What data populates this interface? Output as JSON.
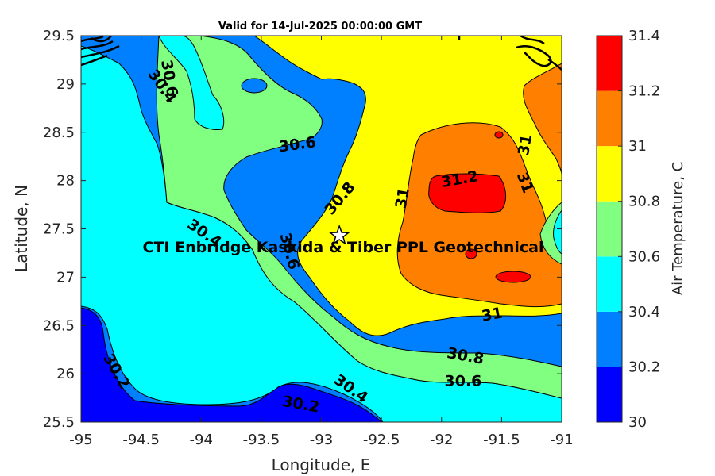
{
  "chart_data": {
    "type": "contour",
    "title": "Valid for 14-Jul-2025 00:00:00 GMT",
    "xlabel": "Longitude, E",
    "ylabel": "Latitude, N",
    "xlim": [
      -95,
      -91
    ],
    "ylim": [
      25.5,
      29.5
    ],
    "xticks": [
      "-95",
      "-94.5",
      "-94",
      "-93.5",
      "-93",
      "-92.5",
      "-92",
      "-91.5",
      "-91"
    ],
    "yticks": [
      "25.5",
      "26",
      "26.5",
      "27",
      "27.5",
      "28",
      "28.5",
      "29",
      "29.5"
    ],
    "colorbar": {
      "label": "Air Temperature, C",
      "ticks": [
        "30",
        "30.2",
        "30.4",
        "30.6",
        "30.8",
        "31",
        "31.2",
        "31.4"
      ],
      "levels": [
        30.0,
        30.2,
        30.4,
        30.6,
        30.8,
        31.0,
        31.2,
        31.4
      ],
      "colors": [
        "#0000ff",
        "#0080ff",
        "#00ffff",
        "#80ff80",
        "#ffff00",
        "#ff8000",
        "#ff0000",
        "#800000"
      ]
    },
    "contour_labels": [
      {
        "text": "30.4",
        "lon": -94.32,
        "lat": 28.98
      },
      {
        "text": "30.6",
        "lon": -94.26,
        "lat": 29.06
      },
      {
        "text": "30.6",
        "lon": -93.2,
        "lat": 28.38
      },
      {
        "text": "30.8",
        "lon": -92.85,
        "lat": 27.82
      },
      {
        "text": "31",
        "lon": -92.33,
        "lat": 27.82
      },
      {
        "text": "31.2",
        "lon": -91.85,
        "lat": 28.02
      },
      {
        "text": "31",
        "lon": -91.31,
        "lat": 28.37
      },
      {
        "text": "31",
        "lon": -91.3,
        "lat": 27.98
      },
      {
        "text": "30.4",
        "lon": -93.97,
        "lat": 27.46
      },
      {
        "text": "30.6",
        "lon": -93.26,
        "lat": 27.27
      },
      {
        "text": "31",
        "lon": -91.58,
        "lat": 26.62
      },
      {
        "text": "30.8",
        "lon": -91.8,
        "lat": 26.19
      },
      {
        "text": "30.6",
        "lon": -91.82,
        "lat": 25.93
      },
      {
        "text": "30.4",
        "lon": -92.75,
        "lat": 25.85
      },
      {
        "text": "30.2",
        "lon": -93.17,
        "lat": 25.69
      },
      {
        "text": "30.2",
        "lon": -94.7,
        "lat": 26.03
      }
    ],
    "marker": {
      "symbol": "star",
      "lon": -92.85,
      "lat": 27.43
    },
    "annotation": "CTI Enbridge  Kaskida & Tiber PPL Geotechnical"
  }
}
